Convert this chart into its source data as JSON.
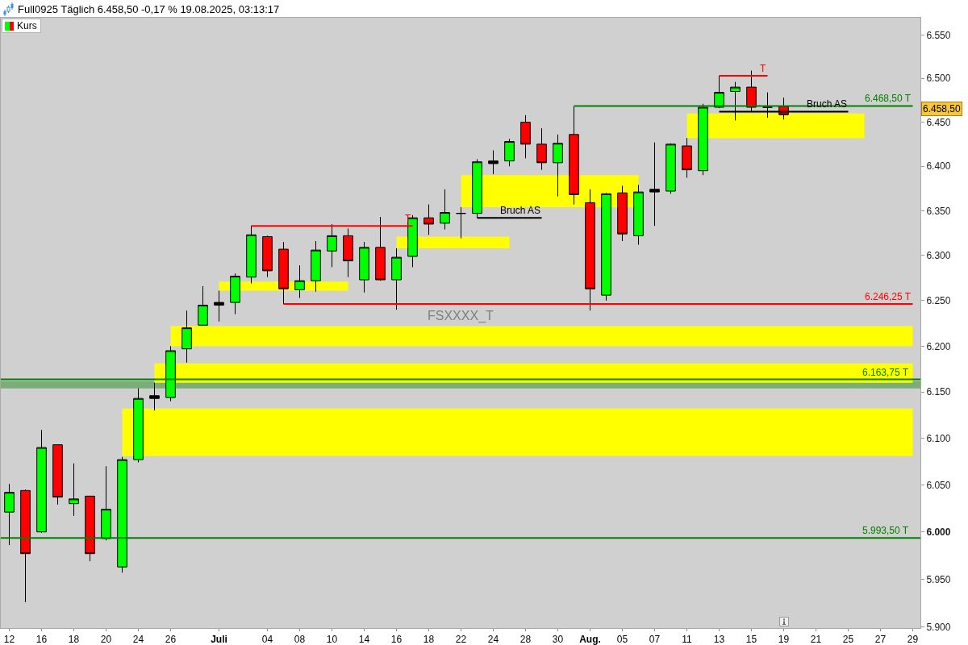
{
  "chart_data": {
    "type": "candlestick",
    "title": "Full0925 Täglich 6.458,50 -0,17 % 19.08.2025, 03:13:17",
    "legend": "top left",
    "log": true,
    "categories": [
      "12",
      null,
      "16",
      null,
      "18",
      null,
      "20",
      null,
      "24",
      null,
      "26",
      null,
      null,
      "Juli",
      null,
      null,
      "04",
      null,
      "08",
      null,
      "10",
      null,
      "14",
      null,
      "16",
      null,
      "18",
      null,
      "22",
      null,
      "24",
      null,
      "28",
      null,
      "30",
      null,
      "Aug.",
      null,
      "05",
      null,
      "07",
      null,
      "11",
      null,
      "13",
      null,
      "15",
      null,
      "19",
      null,
      "21",
      null,
      "25",
      null,
      "27",
      null,
      "29"
    ],
    "ylim": [
      5899,
      6570
    ],
    "yticks": [
      {
        "value": 5900,
        "label": "5.900"
      },
      {
        "value": 5950,
        "label": "5.950"
      },
      {
        "value": 6000,
        "label": "6.000"
      },
      {
        "value": 6050,
        "label": "6.050"
      },
      {
        "value": 6100,
        "label": "6.100"
      },
      {
        "value": 6150,
        "label": "6.150"
      },
      {
        "value": 6200,
        "label": "6.200"
      },
      {
        "value": 6250,
        "label": "6.250"
      },
      {
        "value": 6300,
        "label": "6.300"
      },
      {
        "value": 6350,
        "label": "6.350"
      },
      {
        "value": 6400,
        "label": "6.400"
      },
      {
        "value": 6450,
        "label": "6.450"
      },
      {
        "value": 6500,
        "label": "6.500"
      },
      {
        "value": 6550,
        "label": "6.550"
      }
    ],
    "series": [
      {
        "type": "line",
        "color": "#ffff00",
        "values": [
          null,
          null,
          null,
          null,
          null,
          null,
          null,
          null,
          null,
          null,
          null,
          null,
          null,
          null,
          null,
          null,
          null,
          null,
          null,
          null,
          null,
          null,
          null,
          null,
          null,
          null,
          null,
          null,
          null,
          null,
          null,
          null,
          null,
          null,
          null,
          null,
          null,
          null,
          null,
          null,
          null,
          null,
          null,
          null,
          null,
          null,
          null,
          null,
          null,
          null,
          null,
          null,
          null,
          null,
          null,
          null,
          null
        ],
        "lower": [
          null,
          null,
          null,
          null,
          null,
          null,
          null,
          6081,
          6081,
          6081,
          6081,
          6081,
          6081,
          6081,
          6081,
          6081,
          6081,
          6081,
          6081,
          6081,
          6081,
          6081,
          6081,
          6081,
          6081,
          6081,
          6081,
          6081,
          6081,
          6081,
          6081,
          6081,
          6081,
          6081,
          6081,
          6081,
          6081,
          6081,
          6081,
          6081,
          6081,
          6081,
          6081,
          6081,
          6081,
          6081,
          6081,
          6081,
          6081,
          6081,
          6081,
          6081,
          6081,
          6081,
          6081,
          6081,
          6081
        ],
        "upper": [
          null,
          null,
          null,
          null,
          null,
          null,
          null,
          6132,
          6132,
          6132,
          6132,
          6132,
          6132,
          6132,
          6132,
          6132,
          6132,
          6132,
          6132,
          6132,
          6132,
          6132,
          6132,
          6132,
          6132,
          6132,
          6132,
          6132,
          6132,
          6132,
          6132,
          6132,
          6132,
          6132,
          6132,
          6132,
          6132,
          6132,
          6132,
          6132,
          6132,
          6132,
          6132,
          6132,
          6132,
          6132,
          6132,
          6132,
          6132,
          6132,
          6132,
          6132,
          6132,
          6132,
          6132,
          6132,
          6132
        ]
      },
      {
        "type": "line",
        "color": "#ffff00",
        "values": [
          null,
          null,
          null,
          null,
          null,
          null,
          null,
          null,
          null,
          null,
          null,
          null,
          null,
          null,
          null,
          null,
          null,
          null,
          null,
          null,
          null,
          null,
          null,
          null,
          null,
          null,
          null,
          null,
          null,
          null,
          null,
          null,
          null,
          null,
          null,
          null,
          null,
          null,
          null,
          null,
          null,
          null,
          null,
          null,
          null,
          null,
          null,
          null,
          null,
          null,
          null,
          null,
          null,
          null,
          null,
          null,
          null
        ],
        "lower": [
          null,
          null,
          null,
          null,
          null,
          null,
          null,
          null,
          null,
          6160,
          6160,
          6160,
          6160,
          6160,
          6160,
          6160,
          6160,
          6160,
          6160,
          6160,
          6160,
          6160,
          6160,
          6160,
          6160,
          6160,
          6160,
          6160,
          6160,
          6160,
          6160,
          6160,
          6160,
          6160,
          6160,
          6160,
          6160,
          6160,
          6160,
          6160,
          6160,
          6160,
          6160,
          6160,
          6160,
          6160,
          6160,
          6160,
          6160,
          6160,
          6160,
          6160,
          6160,
          6160,
          6160,
          6160,
          6160
        ],
        "upper": [
          null,
          null,
          null,
          null,
          null,
          null,
          null,
          null,
          null,
          6181,
          6181,
          6181,
          6181,
          6181,
          6181,
          6181,
          6181,
          6181,
          6181,
          6181,
          6181,
          6181,
          6181,
          6181,
          6181,
          6181,
          6181,
          6181,
          6181,
          6181,
          6181,
          6181,
          6181,
          6181,
          6181,
          6181,
          6181,
          6181,
          6181,
          6181,
          6181,
          6181,
          6181,
          6181,
          6181,
          6181,
          6181,
          6181,
          6181,
          6181,
          6181,
          6181,
          6181,
          6181,
          6181,
          6181,
          6181
        ]
      },
      {
        "type": "line",
        "color": "#ffff00",
        "values": [
          null,
          null,
          null,
          null,
          null,
          null,
          null,
          null,
          null,
          null,
          null,
          null,
          null,
          null,
          null,
          null,
          null,
          null,
          null,
          null,
          null,
          null,
          null,
          null,
          null,
          null,
          null,
          null,
          null,
          null,
          null,
          null,
          null,
          null,
          null,
          null,
          null,
          null,
          null,
          null,
          null,
          null,
          null,
          null,
          null,
          null,
          null,
          null,
          null,
          null,
          null,
          null,
          null,
          null,
          null,
          null,
          null
        ],
        "lower": [
          null,
          null,
          null,
          null,
          null,
          null,
          null,
          null,
          null,
          null,
          6200,
          6200,
          6200,
          6200,
          6200,
          6200,
          6200,
          6200,
          6200,
          6200,
          6200,
          6200,
          6200,
          6200,
          6200,
          6200,
          6200,
          6200,
          6200,
          6200,
          6200,
          6200,
          6200,
          6200,
          6200,
          6200,
          6200,
          6200,
          6200,
          6200,
          6200,
          6200,
          6200,
          6200,
          6200,
          6200,
          6200,
          6200,
          6200,
          6200,
          6200,
          6200,
          6200,
          6200,
          6200,
          6200,
          6200
        ],
        "upper": [
          null,
          null,
          null,
          null,
          null,
          null,
          null,
          null,
          null,
          null,
          6222,
          6222,
          6222,
          6222,
          6222,
          6222,
          6222,
          6222,
          6222,
          6222,
          6222,
          6222,
          6222,
          6222,
          6222,
          6222,
          6222,
          6222,
          6222,
          6222,
          6222,
          6222,
          6222,
          6222,
          6222,
          6222,
          6222,
          6222,
          6222,
          6222,
          6222,
          6222,
          6222,
          6222,
          6222,
          6222,
          6222,
          6222,
          6222,
          6222,
          6222,
          6222,
          6222,
          6222,
          6222,
          6222,
          6222
        ]
      },
      {
        "type": "line",
        "color": "#ffff00",
        "values": [
          null,
          null,
          null,
          null,
          null,
          null,
          null,
          null,
          null,
          null,
          null,
          null,
          null,
          null,
          null,
          null,
          null,
          null,
          null,
          null,
          null,
          null,
          null,
          null,
          null,
          null,
          null,
          null,
          null,
          null,
          null,
          null,
          null,
          null,
          null,
          null,
          null,
          null,
          null,
          null,
          null,
          null,
          null,
          null,
          null,
          null,
          null,
          null,
          null,
          null,
          null,
          null,
          null,
          null,
          null,
          null,
          null
        ],
        "lower": [
          null,
          null,
          null,
          null,
          null,
          null,
          null,
          null,
          null,
          null,
          null,
          null,
          null,
          6261,
          6261,
          6261,
          6261,
          6261,
          6261,
          6261,
          6261,
          6261,
          null,
          null,
          null,
          null,
          null,
          null,
          null,
          null,
          null,
          null,
          null,
          null,
          null,
          null,
          null,
          null,
          null,
          null,
          null,
          null,
          null,
          null,
          null,
          null,
          null,
          null,
          null,
          null,
          null,
          null,
          null,
          null,
          null,
          null,
          null
        ],
        "upper": [
          null,
          null,
          null,
          null,
          null,
          null,
          null,
          null,
          null,
          null,
          null,
          null,
          null,
          6271,
          6271,
          6271,
          6271,
          6271,
          6271,
          6271,
          6271,
          6271,
          null,
          null,
          null,
          null,
          null,
          null,
          null,
          null,
          null,
          null,
          null,
          null,
          null,
          null,
          null,
          null,
          null,
          null,
          null,
          null,
          null,
          null,
          null,
          null,
          null,
          null,
          null,
          null,
          null,
          null,
          null,
          null,
          null,
          null,
          null
        ]
      },
      {
        "type": "line",
        "color": "#ffff00",
        "values": [
          null,
          null,
          null,
          null,
          null,
          null,
          null,
          null,
          null,
          null,
          null,
          null,
          null,
          null,
          null,
          null,
          null,
          null,
          null,
          null,
          null,
          null,
          null,
          null,
          null,
          null,
          null,
          null,
          null,
          null,
          null,
          null,
          null,
          null,
          null,
          null,
          null,
          null,
          null,
          null,
          null,
          null,
          null,
          null,
          null,
          null,
          null,
          null,
          null,
          null,
          null,
          null,
          null,
          null,
          null,
          null,
          null
        ],
        "lower": [
          null,
          null,
          null,
          null,
          null,
          null,
          null,
          null,
          null,
          null,
          null,
          null,
          null,
          null,
          null,
          null,
          null,
          null,
          null,
          null,
          null,
          null,
          null,
          null,
          6308,
          6308,
          6308,
          6308,
          6308,
          6308,
          6308,
          6308,
          null,
          null,
          null,
          null,
          null,
          null,
          null,
          null,
          null,
          null,
          null,
          null,
          null,
          null,
          null,
          null,
          null,
          null,
          null,
          null,
          null,
          null,
          null,
          null,
          null
        ],
        "upper": [
          null,
          null,
          null,
          null,
          null,
          null,
          null,
          null,
          null,
          null,
          null,
          null,
          null,
          null,
          null,
          null,
          null,
          null,
          null,
          null,
          null,
          null,
          null,
          null,
          6321,
          6321,
          6321,
          6321,
          6321,
          6321,
          6321,
          6321,
          null,
          null,
          null,
          null,
          null,
          null,
          null,
          null,
          null,
          null,
          null,
          null,
          null,
          null,
          null,
          null,
          null,
          null,
          null,
          null,
          null,
          null,
          null,
          null,
          null
        ]
      },
      {
        "type": "line",
        "color": "#ffff00",
        "values": [
          null,
          null,
          null,
          null,
          null,
          null,
          null,
          null,
          null,
          null,
          null,
          null,
          null,
          null,
          null,
          null,
          null,
          null,
          null,
          null,
          null,
          null,
          null,
          null,
          null,
          null,
          null,
          null,
          null,
          null,
          null,
          null,
          null,
          null,
          null,
          null,
          null,
          null,
          null,
          null,
          null,
          null,
          null,
          null,
          null,
          null,
          null,
          null,
          null,
          null,
          null,
          null,
          null,
          null,
          null,
          null,
          null
        ],
        "lower": [
          null,
          null,
          null,
          null,
          null,
          null,
          null,
          null,
          null,
          null,
          null,
          null,
          null,
          null,
          null,
          null,
          null,
          null,
          null,
          null,
          null,
          null,
          null,
          null,
          null,
          null,
          null,
          null,
          6354,
          6354,
          6354,
          6354,
          6354,
          6354,
          6354,
          6354,
          6354,
          6354,
          6354,
          6354,
          null,
          null,
          null,
          null,
          null,
          null,
          null,
          null,
          null,
          null,
          null,
          null,
          null,
          null,
          null,
          null,
          null
        ],
        "upper": [
          null,
          null,
          null,
          null,
          null,
          null,
          null,
          null,
          null,
          null,
          null,
          null,
          null,
          null,
          null,
          null,
          null,
          null,
          null,
          null,
          null,
          null,
          null,
          null,
          null,
          null,
          null,
          null,
          6390,
          6390,
          6390,
          6390,
          6390,
          6390,
          6390,
          6390,
          6390,
          6390,
          6390,
          6390,
          null,
          null,
          null,
          null,
          null,
          null,
          null,
          null,
          null,
          null,
          null,
          null,
          null,
          null,
          null,
          null,
          null
        ]
      },
      {
        "type": "line",
        "color": "#ffff00",
        "values": [
          null,
          null,
          null,
          null,
          null,
          null,
          null,
          null,
          null,
          null,
          null,
          null,
          null,
          null,
          null,
          null,
          null,
          null,
          null,
          null,
          null,
          null,
          null,
          null,
          null,
          null,
          null,
          null,
          null,
          null,
          null,
          null,
          null,
          null,
          null,
          null,
          null,
          null,
          null,
          null,
          null,
          null,
          null,
          null,
          null,
          null,
          null,
          null,
          null,
          null,
          null,
          null,
          null,
          null,
          null,
          null,
          null
        ],
        "lower": [
          null,
          null,
          null,
          null,
          null,
          null,
          null,
          null,
          null,
          null,
          null,
          null,
          null,
          null,
          null,
          null,
          null,
          null,
          null,
          null,
          null,
          null,
          null,
          null,
          null,
          null,
          null,
          null,
          null,
          null,
          null,
          null,
          null,
          null,
          null,
          null,
          null,
          null,
          null,
          null,
          null,
          null,
          6432,
          6432,
          6432,
          6432,
          6432,
          6432,
          6432,
          6432,
          6432,
          6432,
          6432,
          6432,
          null,
          null,
          null
        ],
        "upper": [
          null,
          null,
          null,
          null,
          null,
          null,
          null,
          null,
          null,
          null,
          null,
          null,
          null,
          null,
          null,
          null,
          null,
          null,
          null,
          null,
          null,
          null,
          null,
          null,
          null,
          null,
          null,
          null,
          null,
          null,
          null,
          null,
          null,
          null,
          null,
          null,
          null,
          null,
          null,
          null,
          null,
          null,
          6460,
          6460,
          6460,
          6460,
          6460,
          6460,
          6460,
          6460,
          6460,
          6460,
          6460,
          6460,
          null,
          null,
          null
        ]
      },
      {
        "name": "Kurs",
        "ohlc": [
          [
            6021,
            6051,
            5986,
            6042
          ],
          [
            6044,
            6045,
            5926,
            5977
          ],
          [
            6000,
            6109,
            5999,
            6090
          ],
          [
            6093,
            6093,
            6029,
            6037
          ],
          [
            6030,
            6073,
            6017,
            6035
          ],
          [
            6038,
            6038,
            5969,
            5977
          ],
          [
            5993,
            6070,
            5991,
            6024
          ],
          [
            5963,
            6080,
            5957,
            6077
          ],
          [
            6077,
            6154,
            6074,
            6143
          ],
          [
            6143,
            6160,
            6130,
            6146
          ],
          [
            6144,
            6200,
            6140,
            6195
          ],
          [
            6197,
            6239,
            6182,
            6220
          ],
          [
            6223,
            6266,
            6223,
            6245
          ],
          [
            6245,
            6261,
            6227,
            6248
          ],
          [
            6248,
            6280,
            6235,
            6277
          ],
          [
            6276,
            6333,
            6269,
            6323
          ],
          [
            6321,
            6322,
            6276,
            6283
          ],
          [
            6307,
            6315,
            6246,
            6263
          ],
          [
            6262,
            6289,
            6253,
            6272
          ],
          [
            6272,
            6316,
            6260,
            6306
          ],
          [
            6305,
            6335,
            6287,
            6322
          ],
          [
            6322,
            6330,
            6276,
            6294
          ],
          [
            6273,
            6315,
            6259,
            6309
          ],
          [
            6309,
            6343,
            6272,
            6273
          ],
          [
            6273,
            6308,
            6240,
            6298
          ],
          [
            6299,
            6345,
            6287,
            6342
          ],
          [
            6342,
            6357,
            6323,
            6335
          ],
          [
            6336,
            6374,
            6329,
            6348
          ],
          [
            6347,
            6354,
            6319,
            6347
          ],
          [
            6347,
            6408,
            6342,
            6405
          ],
          [
            6403,
            6418,
            6391,
            6406
          ],
          [
            6406,
            6431,
            6400,
            6428
          ],
          [
            6450,
            6458,
            6409,
            6425
          ],
          [
            6425,
            6443,
            6396,
            6404
          ],
          [
            6404,
            6436,
            6366,
            6426
          ],
          [
            6436,
            6468,
            6357,
            6368
          ],
          [
            6359,
            6374,
            6239,
            6263
          ],
          [
            6256,
            6370,
            6250,
            6369
          ],
          [
            6370,
            6378,
            6316,
            6324
          ],
          [
            6322,
            6379,
            6312,
            6371
          ],
          [
            6371,
            6427,
            6333,
            6374
          ],
          [
            6372,
            6426,
            6369,
            6425
          ],
          [
            6423,
            6432,
            6387,
            6396
          ],
          [
            6395,
            6471,
            6390,
            6467
          ],
          [
            6467,
            6503,
            6466,
            6484
          ],
          [
            6485,
            6496,
            6452,
            6490
          ],
          [
            6490,
            6509,
            6462,
            6467
          ],
          [
            6467,
            6484,
            6455,
            6467
          ],
          [
            6468,
            6478,
            6453,
            6458.5
          ],
          null,
          null,
          null,
          null,
          null,
          null,
          null,
          null
        ],
        "colors": [
          "#00ff00",
          "#ff0000",
          "#00ff00",
          "#ff0000",
          "#00ff00",
          "#ff0000",
          "#00ff00",
          "#00ff00",
          "#00ff00",
          "#000000",
          "#00ff00",
          "#00ff00",
          "#00ff00",
          "#000000",
          "#00ff00",
          "#00ff00",
          "#ff0000",
          "#ff0000",
          "#00ff00",
          "#00ff00",
          "#00ff00",
          "#ff0000",
          "#00ff00",
          "#ff0000",
          "#00ff00",
          "#00ff00",
          "#ff0000",
          "#00ff00",
          "#000000",
          "#00ff00",
          "#000000",
          "#00ff00",
          "#ff0000",
          "#ff0000",
          "#00ff00",
          "#ff0000",
          "#ff0000",
          "#00ff00",
          "#ff0000",
          "#00ff00",
          "#000000",
          "#00ff00",
          "#ff0000",
          "#00ff00",
          "#00ff00",
          "#00ff00",
          "#ff0000",
          "#000000",
          "#ff0000",
          null,
          null,
          null,
          null,
          null,
          null,
          null,
          null
        ]
      },
      {
        "type": "line",
        "name": "T",
        "color": "#ff0000",
        "values": [
          null,
          null,
          null,
          null,
          null,
          null,
          null,
          null,
          null,
          null,
          null,
          null,
          null,
          null,
          null,
          6333,
          6333,
          6333,
          6333,
          6333,
          6333,
          6333,
          6333,
          6333,
          6333,
          6333,
          null,
          null,
          null,
          null,
          null,
          null,
          null,
          null,
          null,
          null,
          null,
          null,
          null,
          null,
          null,
          null,
          null,
          null,
          null,
          null,
          null,
          null,
          null,
          null,
          null,
          null,
          null,
          null,
          null,
          null,
          null
        ]
      },
      {
        "type": "line",
        "name": "T",
        "color": "#ff0000",
        "values": [
          null,
          null,
          null,
          null,
          null,
          null,
          null,
          null,
          null,
          null,
          null,
          null,
          null,
          null,
          null,
          null,
          null,
          null,
          null,
          null,
          null,
          null,
          null,
          null,
          null,
          null,
          null,
          null,
          null,
          null,
          null,
          null,
          null,
          null,
          null,
          null,
          null,
          null,
          null,
          null,
          null,
          null,
          null,
          null,
          6503,
          6503,
          6503,
          6503,
          null,
          null,
          null,
          null,
          null,
          null,
          null,
          null,
          null
        ]
      },
      {
        "type": "line",
        "name": "6.246,25 T",
        "color": "#ff0000",
        "values": [
          null,
          null,
          null,
          null,
          null,
          null,
          null,
          null,
          null,
          null,
          null,
          null,
          null,
          null,
          null,
          null,
          null,
          6246.25,
          6246.25,
          6246.25,
          6246.25,
          6246.25,
          6246.25,
          6246.25,
          6246.25,
          6246.25,
          6246.25,
          6246.25,
          6246.25,
          6246.25,
          6246.25,
          6246.25,
          6246.25,
          6246.25,
          6246.25,
          6246.25,
          6246.25,
          6246.25,
          6246.25,
          6246.25,
          6246.25,
          6246.25,
          6246.25,
          6246.25,
          6246.25,
          6246.25,
          6246.25,
          6246.25,
          6246.25,
          6246.25,
          6246.25,
          6246.25,
          6246.25,
          6246.25,
          6246.25,
          6246.25,
          6246.25
        ]
      },
      {
        "type": "line",
        "name": "6.468,50 T",
        "color": "#008000",
        "values": [
          null,
          null,
          null,
          null,
          null,
          null,
          null,
          null,
          null,
          null,
          null,
          null,
          null,
          null,
          null,
          null,
          null,
          null,
          null,
          null,
          null,
          null,
          null,
          null,
          null,
          null,
          null,
          null,
          null,
          null,
          null,
          null,
          null,
          null,
          null,
          6468.5,
          6468.5,
          6468.5,
          6468.5,
          6468.5,
          6468.5,
          6468.5,
          6468.5,
          6468.5,
          6468.5,
          6468.5,
          6468.5,
          6468.5,
          6468.5,
          6468.5,
          6468.5,
          6468.5,
          6468.5,
          6468.5,
          6468.5,
          6468.5,
          6468.5
        ]
      },
      {
        "type": "line",
        "name": "Bruch AS",
        "color": "#000000",
        "values": [
          null,
          null,
          null,
          null,
          null,
          null,
          null,
          null,
          null,
          null,
          null,
          null,
          null,
          null,
          null,
          null,
          null,
          null,
          null,
          null,
          null,
          null,
          null,
          null,
          null,
          null,
          null,
          null,
          null,
          6342,
          6342,
          6342,
          6342,
          6342,
          null,
          null,
          null,
          null,
          null,
          null,
          null,
          null,
          null,
          null,
          null,
          null,
          null,
          null,
          null,
          null,
          null,
          null,
          null,
          null,
          null,
          null,
          null
        ]
      },
      {
        "type": "line",
        "name": "Bruch AS",
        "color": "#000000",
        "values": [
          null,
          null,
          null,
          null,
          null,
          null,
          null,
          null,
          null,
          null,
          null,
          null,
          null,
          null,
          null,
          null,
          null,
          null,
          null,
          null,
          null,
          null,
          null,
          null,
          null,
          null,
          null,
          null,
          null,
          null,
          null,
          null,
          null,
          null,
          null,
          null,
          null,
          null,
          null,
          null,
          null,
          null,
          null,
          null,
          6462,
          6462,
          6462,
          6462,
          6462,
          6462,
          6462,
          6462,
          6462,
          null,
          null,
          null,
          null
        ]
      }
    ],
    "bands": [
      {
        "axis": "y",
        "from": 6154,
        "to": 6162,
        "color": "#79ad79"
      }
    ],
    "ref_lines": [
      {
        "axis": "y",
        "value": 6163.75,
        "label": "6.163,75 T",
        "color": "#008000"
      },
      {
        "axis": "y",
        "value": 5993.5,
        "label": "5.993,50 T",
        "color": "#008000"
      }
    ],
    "annotations": [
      "FSXXXX_T",
      "6.458,50"
    ]
  }
}
